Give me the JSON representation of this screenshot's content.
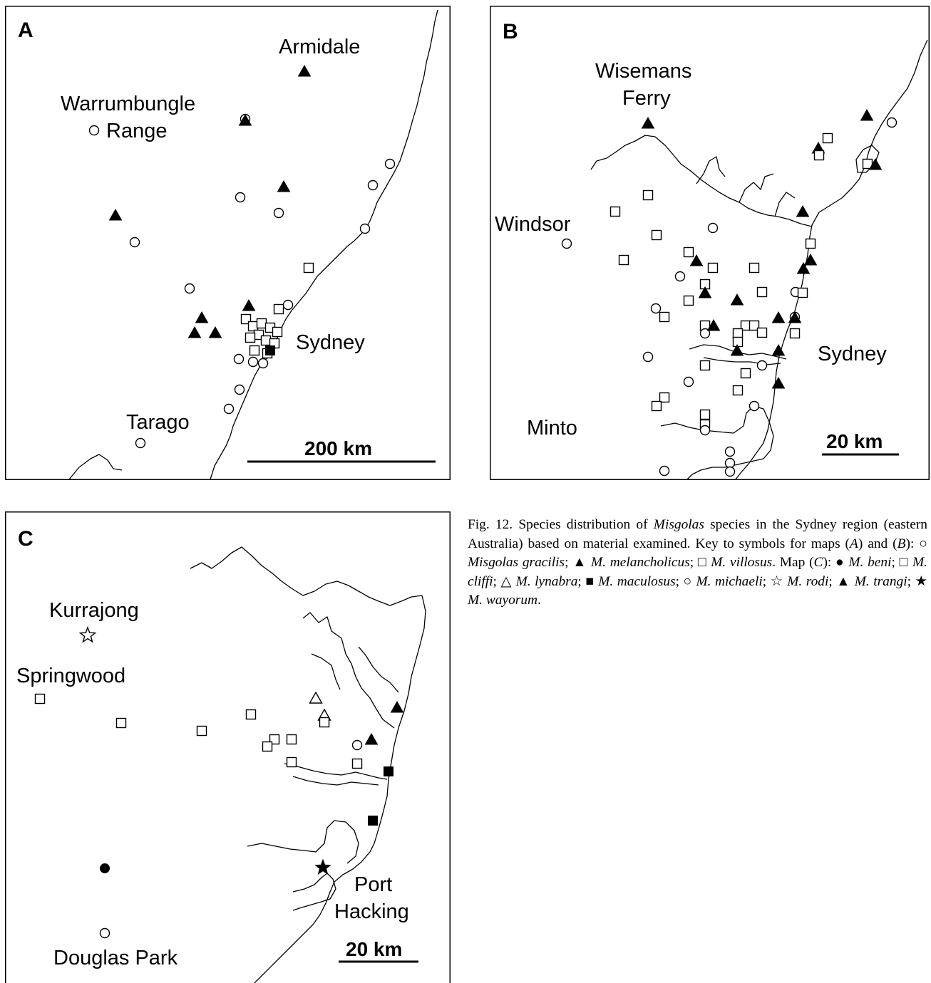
{
  "figure": "Fig. 12.",
  "panels": [
    {
      "id": "A",
      "letter": "A",
      "places": [
        "Armidale",
        "Warrumbungle",
        "Range",
        "Sydney",
        "Tarago"
      ],
      "scale": "200 km",
      "legend_symbols": [
        "circle-open",
        "triangle-filled"
      ]
    },
    {
      "id": "B",
      "letter": "B",
      "places": [
        "Wisemans",
        "Ferry",
        "Windsor",
        "Sydney",
        "Minto"
      ],
      "scale": "20 km",
      "legend_symbols": [
        "circle-open",
        "triangle-filled",
        "square-open"
      ]
    },
    {
      "id": "C",
      "letter": "C",
      "places": [
        "Kurrajong",
        "Springwood",
        "Port",
        "Hacking",
        "Douglas Park"
      ],
      "scale": "20 km",
      "legend_symbols": [
        "circle-filled",
        "square-open",
        "triangle-open",
        "square-filled",
        "circle-open",
        "star-open",
        "triangle-filled",
        "star-filled"
      ]
    }
  ],
  "caption": {
    "lead": "Fig. 12. Species distribution of",
    "genus": "Misgolas",
    "rest1": "species in the Sydney region (eastern Australia) based on material examined. Key to symbols for maps (",
    "a": "A",
    "and": ") and (",
    "b": "B",
    "close": "):",
    "gracilis": "Misgolas gracilis",
    "melancholicus": "M. melancholicus",
    "villosus": "M. villosus",
    "mapc": ". Map (",
    "c": "C",
    "beni": "M. beni",
    "cliffi": "M. cliffi",
    "lynabra": "M. lynabra",
    "maculosus": "M. maculosus",
    "michaeli": "M. michaeli",
    "rodi": "M. rodi",
    "trangi": "M. trangi",
    "wayorum": "M. wayorum"
  }
}
